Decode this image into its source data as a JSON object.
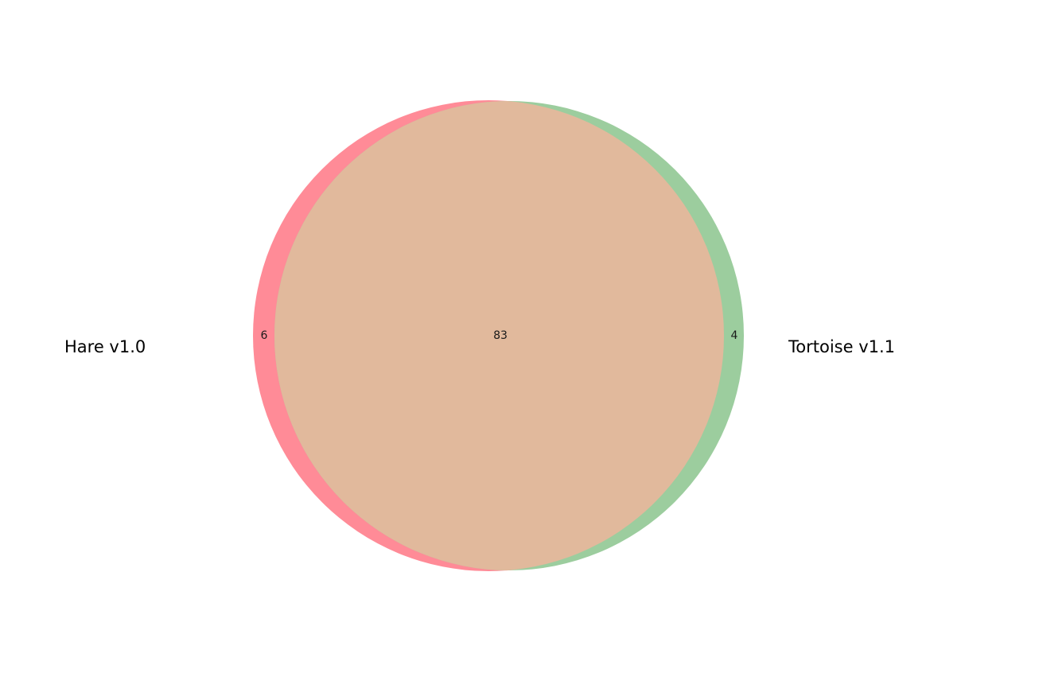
{
  "venn": {
    "sets": [
      {
        "name": "Hare v1.0",
        "color": "#ff8b97"
      },
      {
        "name": "Tortoise v1.1",
        "color": "#9ccd9e"
      }
    ],
    "regions": {
      "left_only": "6",
      "overlap": "83",
      "right_only": "4"
    },
    "overlap_color": "#e1b99c"
  }
}
